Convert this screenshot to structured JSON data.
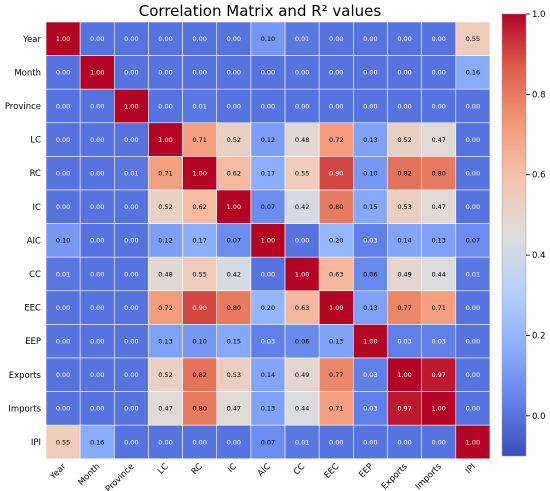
{
  "chart_data": {
    "type": "heatmap",
    "title": "Correlation Matrix and  R² values",
    "labels": [
      "Year",
      "Month",
      "Province",
      "LC",
      "RC",
      "IC",
      "AIC",
      "CC",
      "EEC",
      "EEP",
      "Exports",
      "Imports",
      "IPI"
    ],
    "values": [
      [
        1.0,
        0.0,
        0.0,
        0.0,
        0.0,
        0.0,
        0.1,
        0.01,
        0.0,
        0.0,
        0.0,
        0.0,
        0.55
      ],
      [
        0.0,
        1.0,
        0.0,
        0.0,
        0.0,
        0.0,
        0.0,
        0.0,
        0.0,
        0.0,
        0.0,
        0.0,
        0.16
      ],
      [
        0.0,
        0.0,
        1.0,
        0.0,
        0.01,
        0.0,
        0.0,
        0.0,
        0.0,
        0.0,
        0.0,
        0.0,
        0.0
      ],
      [
        0.0,
        0.0,
        0.0,
        1.0,
        0.71,
        0.52,
        0.12,
        0.48,
        0.72,
        0.13,
        0.52,
        0.47,
        0.0
      ],
      [
        0.0,
        0.0,
        0.01,
        0.71,
        1.0,
        0.62,
        0.17,
        0.55,
        0.9,
        0.1,
        0.82,
        0.8,
        0.0
      ],
      [
        0.0,
        0.0,
        0.0,
        0.52,
        0.62,
        1.0,
        0.07,
        0.42,
        0.8,
        0.15,
        0.53,
        0.47,
        0.0
      ],
      [
        0.1,
        0.0,
        0.0,
        0.12,
        0.17,
        0.07,
        1.0,
        0.0,
        0.2,
        0.03,
        0.14,
        0.13,
        0.07
      ],
      [
        0.01,
        0.0,
        0.0,
        0.48,
        0.55,
        0.42,
        0.0,
        1.0,
        0.63,
        0.06,
        0.49,
        0.44,
        0.01
      ],
      [
        0.0,
        0.0,
        0.0,
        0.72,
        0.9,
        0.8,
        0.2,
        0.63,
        1.0,
        0.13,
        0.77,
        0.71,
        0.0
      ],
      [
        0.0,
        0.0,
        0.0,
        0.13,
        0.1,
        0.15,
        0.03,
        0.06,
        0.13,
        1.0,
        0.03,
        0.03,
        0.0
      ],
      [
        0.0,
        0.0,
        0.0,
        0.52,
        0.82,
        0.53,
        0.14,
        0.49,
        0.77,
        0.03,
        1.0,
        0.97,
        0.0
      ],
      [
        0.0,
        0.0,
        0.0,
        0.47,
        0.8,
        0.47,
        0.13,
        0.44,
        0.71,
        0.03,
        0.97,
        1.0,
        0.0
      ],
      [
        0.55,
        0.16,
        0.0,
        0.0,
        0.0,
        0.0,
        0.07,
        0.01,
        0.0,
        0.0,
        0.0,
        0.0,
        1.0
      ]
    ],
    "colorbar": {
      "min": -0.1,
      "max": 1.0,
      "ticks": [
        "0.0",
        "0.2",
        "0.4",
        "0.6",
        "0.8",
        "1.0"
      ],
      "colormap": "coolwarm"
    },
    "highlight_color": "#ff00ff"
  }
}
